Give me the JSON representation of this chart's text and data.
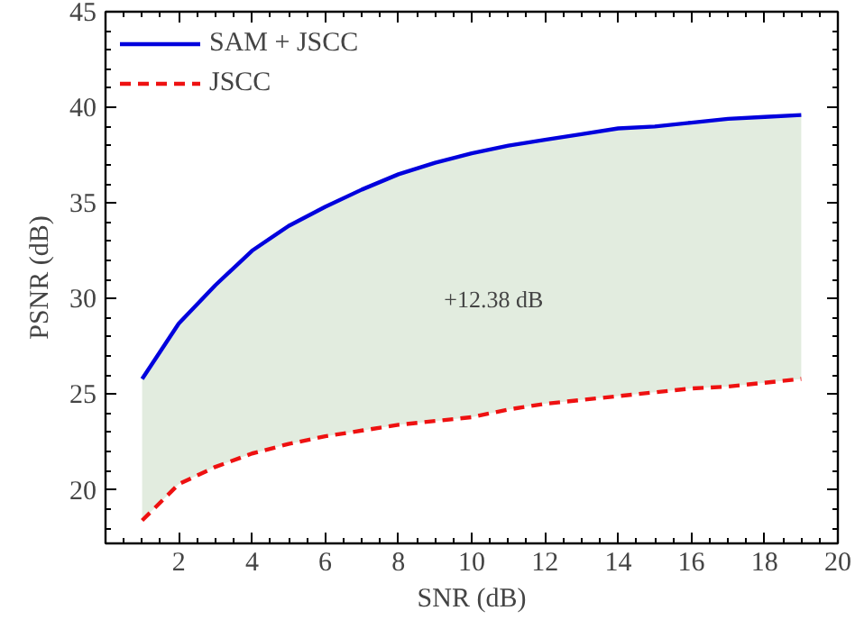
{
  "chart_data": {
    "type": "line",
    "xlabel": "SNR (dB)",
    "ylabel": "PSNR (dB)",
    "x": [
      1,
      2,
      3,
      4,
      5,
      6,
      7,
      8,
      9,
      10,
      11,
      12,
      13,
      14,
      15,
      16,
      17,
      18,
      19
    ],
    "series": [
      {
        "name": "SAM + JSCC",
        "color": "#0000dd",
        "line_style": "solid",
        "values": [
          25.8,
          28.7,
          30.7,
          32.5,
          33.8,
          34.8,
          35.7,
          36.5,
          37.1,
          37.6,
          38.0,
          38.3,
          38.6,
          38.9,
          39.0,
          39.2,
          39.4,
          39.5,
          39.6
        ],
        "lower": [
          18.4,
          20.3,
          21.2,
          21.9,
          22.4,
          22.8,
          23.1,
          23.4,
          23.6,
          23.8,
          24.2,
          24.5,
          24.7,
          24.9,
          25.1,
          25.3,
          25.4,
          25.6,
          25.8
        ],
        "upper": [
          25.8,
          28.7,
          30.7,
          32.5,
          33.8,
          34.8,
          35.7,
          36.5,
          37.1,
          37.6,
          38.0,
          38.3,
          38.6,
          38.9,
          39.0,
          39.2,
          39.4,
          39.5,
          39.6
        ]
      },
      {
        "name": "JSCC",
        "color": "#ee1111",
        "line_style": "dashed",
        "values": [
          18.4,
          20.3,
          21.2,
          21.9,
          22.4,
          22.8,
          23.1,
          23.4,
          23.6,
          23.8,
          24.2,
          24.5,
          24.7,
          24.9,
          25.1,
          25.3,
          25.4,
          25.6,
          25.8
        ]
      }
    ],
    "annotations": [
      "+12.38 dB"
    ],
    "xlim": [
      0,
      20
    ],
    "ylim": [
      17.2,
      45
    ],
    "xticks": [
      {
        "value": 0,
        "label": null
      },
      2,
      4,
      6,
      8,
      10,
      12,
      14,
      16,
      18,
      20
    ],
    "yticks": [
      20,
      25,
      30,
      35,
      40,
      45
    ],
    "grid": false,
    "legend": "top left",
    "marker": "none"
  }
}
